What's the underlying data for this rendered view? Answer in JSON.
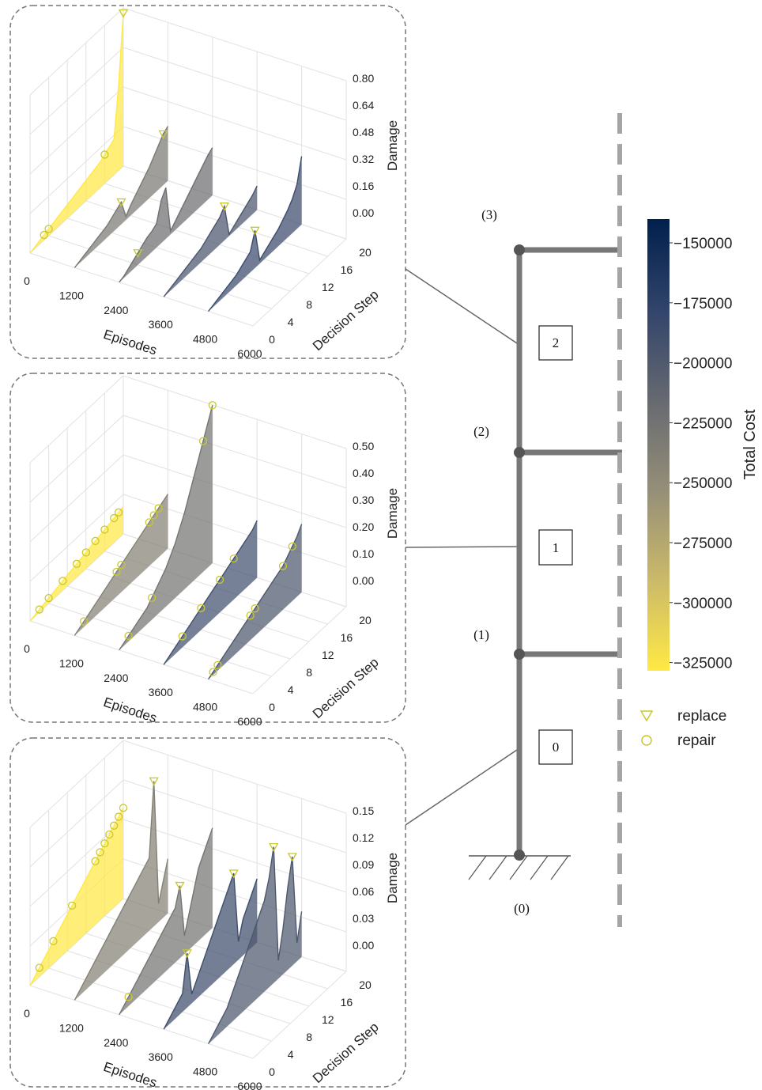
{
  "structure": {
    "floor_labels": [
      "(3)",
      "(2)",
      "(1)",
      "(0)"
    ],
    "element_labels": [
      "2",
      "1",
      "0"
    ]
  },
  "colorbar": {
    "label": "Total Cost",
    "ticks": [
      "−150000",
      "−175000",
      "−200000",
      "−225000",
      "−250000",
      "−275000",
      "−300000",
      "−325000"
    ],
    "colors": [
      "#00204c",
      "#31446b",
      "#666970",
      "#958f78",
      "#cbba69",
      "#ffe945"
    ]
  },
  "legend": {
    "replace_label": "replace",
    "repair_label": "repair",
    "marker_color": "#c8c830"
  },
  "chart_data": [
    {
      "type": "area",
      "element": "2",
      "title": "",
      "xlabel": "Episodes",
      "ylabel": "Decision Step",
      "zlabel": "Damage",
      "x_ticks": [
        "0",
        "1200",
        "2400",
        "3600",
        "4800",
        "6000"
      ],
      "y_ticks": [
        "0",
        "4",
        "8",
        "12",
        "16",
        "20"
      ],
      "z_ticks": [
        "0.00",
        "0.16",
        "0.32",
        "0.48",
        "0.64",
        "0.80"
      ],
      "zlim": [
        0,
        0.8
      ],
      "series": [
        {
          "episode": 0,
          "total_cost": -325000,
          "damage": [
            0.0,
            0.01,
            0.02,
            0.03,
            0.04,
            0.05,
            0.06,
            0.07,
            0.08,
            0.09,
            0.1,
            0.11,
            0.12,
            0.13,
            0.14,
            0.15,
            0.17,
            0.19,
            0.21,
            0.5,
            0.9
          ],
          "repair_steps": [
            3,
            4,
            16
          ],
          "replace_steps": [
            20
          ]
        },
        {
          "episode": 1200,
          "total_cost": -232000,
          "damage": [
            0.0,
            0.01,
            0.02,
            0.03,
            0.04,
            0.05,
            0.06,
            0.07,
            0.09,
            0.11,
            0.13,
            0.02,
            0.06,
            0.09,
            0.12,
            0.15,
            0.18,
            0.22,
            0.26,
            0.3,
            0.32
          ],
          "repair_steps": [],
          "replace_steps": [
            10,
            19
          ]
        },
        {
          "episode": 2400,
          "total_cost": -222000,
          "damage": [
            0.0,
            0.01,
            0.03,
            0.05,
            0.07,
            0.09,
            0.11,
            0.12,
            0.14,
            0.25,
            0.3,
            0.02,
            0.05,
            0.08,
            0.11,
            0.14,
            0.17,
            0.2,
            0.23,
            0.26,
            0.28
          ],
          "repair_steps": [],
          "replace_steps": [
            4
          ]
        },
        {
          "episode": 3600,
          "total_cost": -198000,
          "damage": [
            0.0,
            0.01,
            0.02,
            0.03,
            0.04,
            0.05,
            0.06,
            0.07,
            0.08,
            0.1,
            0.12,
            0.14,
            0.16,
            0.2,
            0.01,
            0.03,
            0.05,
            0.07,
            0.09,
            0.11,
            0.14
          ],
          "repair_steps": [],
          "replace_steps": [
            13
          ]
        },
        {
          "episode": 4800,
          "total_cost": -188000,
          "damage": [
            0.0,
            0.01,
            0.02,
            0.03,
            0.04,
            0.05,
            0.06,
            0.08,
            0.1,
            0.12,
            0.22,
            0.02,
            0.04,
            0.06,
            0.08,
            0.1,
            0.13,
            0.16,
            0.2,
            0.26,
            0.4
          ],
          "repair_steps": [],
          "replace_steps": [
            10
          ]
        }
      ]
    },
    {
      "type": "area",
      "element": "1",
      "title": "",
      "xlabel": "Episodes",
      "ylabel": "Decision Step",
      "zlabel": "Damage",
      "x_ticks": [
        "0",
        "1200",
        "2400",
        "3600",
        "4800",
        "6000"
      ],
      "y_ticks": [
        "0",
        "4",
        "8",
        "12",
        "16",
        "20"
      ],
      "z_ticks": [
        "0.00",
        "0.10",
        "0.20",
        "0.30",
        "0.40",
        "0.50"
      ],
      "zlim": [
        0,
        0.5
      ],
      "series": [
        {
          "episode": 0,
          "total_cost": -325000,
          "damage": [
            0.0,
            0.005,
            0.01,
            0.015,
            0.02,
            0.025,
            0.03,
            0.035,
            0.04,
            0.045,
            0.05,
            0.055,
            0.06,
            0.065,
            0.07,
            0.075,
            0.08,
            0.085,
            0.09,
            0.095,
            0.1
          ],
          "repair_steps": [
            2,
            4,
            7,
            10,
            12,
            14,
            16,
            18,
            19
          ],
          "replace_steps": []
        },
        {
          "episode": 1200,
          "total_cost": -240000,
          "damage": [
            0.0,
            0.01,
            0.02,
            0.03,
            0.04,
            0.05,
            0.06,
            0.07,
            0.08,
            0.09,
            0.1,
            0.11,
            0.12,
            0.13,
            0.14,
            0.15,
            0.16,
            0.17,
            0.18,
            0.19,
            0.2
          ],
          "repair_steps": [
            2,
            9,
            10,
            16,
            17,
            18
          ],
          "replace_steps": []
        },
        {
          "episode": 2400,
          "total_cost": -228000,
          "damage": [
            0.0,
            0.01,
            0.02,
            0.03,
            0.04,
            0.05,
            0.06,
            0.08,
            0.1,
            0.12,
            0.14,
            0.17,
            0.2,
            0.24,
            0.28,
            0.33,
            0.38,
            0.43,
            0.48,
            0.53,
            0.58
          ],
          "repair_steps": [
            2,
            7,
            18,
            20
          ],
          "replace_steps": []
        },
        {
          "episode": 3600,
          "total_cost": -192000,
          "damage": [
            0.0,
            0.01,
            0.02,
            0.03,
            0.04,
            0.05,
            0.06,
            0.07,
            0.08,
            0.09,
            0.1,
            0.11,
            0.12,
            0.13,
            0.14,
            0.15,
            0.16,
            0.17,
            0.18,
            0.19,
            0.21
          ],
          "repair_steps": [
            4,
            8,
            12,
            15
          ],
          "replace_steps": []
        },
        {
          "episode": 4800,
          "total_cost": -200000,
          "damage": [
            0.0,
            0.01,
            0.02,
            0.03,
            0.04,
            0.05,
            0.06,
            0.07,
            0.08,
            0.09,
            0.1,
            0.11,
            0.12,
            0.13,
            0.14,
            0.15,
            0.16,
            0.18,
            0.2,
            0.22,
            0.25
          ],
          "repair_steps": [
            1,
            2,
            9,
            10,
            16,
            18
          ],
          "replace_steps": []
        }
      ]
    },
    {
      "type": "area",
      "element": "0",
      "title": "",
      "xlabel": "Episodes",
      "ylabel": "Decision Step",
      "zlabel": "Damage",
      "x_ticks": [
        "0",
        "1200",
        "2400",
        "3600",
        "4800",
        "6000"
      ],
      "y_ticks": [
        "0",
        "4",
        "8",
        "12",
        "16",
        "20"
      ],
      "z_ticks": [
        "0.00",
        "0.03",
        "0.06",
        "0.09",
        "0.12",
        "0.15"
      ],
      "zlim": [
        0,
        0.15
      ],
      "series": [
        {
          "episode": 0,
          "total_cost": -325000,
          "damage": [
            0.0,
            0.005,
            0.01,
            0.015,
            0.02,
            0.025,
            0.03,
            0.035,
            0.04,
            0.045,
            0.05,
            0.055,
            0.06,
            0.065,
            0.07,
            0.075,
            0.08,
            0.085,
            0.09,
            0.095,
            0.1
          ],
          "repair_steps": [
            2,
            5,
            9,
            14,
            15,
            16,
            17,
            18,
            19,
            20
          ],
          "replace_steps": []
        },
        {
          "episode": 1200,
          "total_cost": -240000,
          "damage": [
            0.0,
            0.005,
            0.01,
            0.015,
            0.02,
            0.025,
            0.03,
            0.035,
            0.04,
            0.045,
            0.05,
            0.055,
            0.06,
            0.065,
            0.07,
            0.075,
            0.08,
            0.16,
            0.02,
            0.04,
            0.06
          ],
          "repair_steps": [],
          "replace_steps": [
            17
          ]
        },
        {
          "episode": 2400,
          "total_cost": -228000,
          "damage": [
            0.0,
            0.005,
            0.01,
            0.015,
            0.02,
            0.025,
            0.03,
            0.035,
            0.04,
            0.045,
            0.05,
            0.055,
            0.06,
            0.08,
            0.02,
            0.04,
            0.06,
            0.08,
            0.09,
            0.1,
            0.11
          ],
          "repair_steps": [
            2
          ],
          "replace_steps": [
            13
          ]
        },
        {
          "episode": 3600,
          "total_cost": -190000,
          "damage": [
            0.0,
            0.005,
            0.01,
            0.015,
            0.02,
            0.06,
            0.01,
            0.02,
            0.03,
            0.04,
            0.05,
            0.06,
            0.07,
            0.08,
            0.09,
            0.1,
            0.02,
            0.04,
            0.05,
            0.06,
            0.07
          ],
          "repair_steps": [],
          "replace_steps": [
            5,
            15
          ]
        },
        {
          "episode": 4800,
          "total_cost": -200000,
          "damage": [
            0.0,
            0.005,
            0.01,
            0.015,
            0.02,
            0.03,
            0.04,
            0.05,
            0.06,
            0.07,
            0.08,
            0.09,
            0.1,
            0.12,
            0.15,
            0.02,
            0.05,
            0.09,
            0.12,
            0.02,
            0.05
          ],
          "repair_steps": [],
          "replace_steps": [
            14,
            18
          ]
        }
      ]
    }
  ]
}
